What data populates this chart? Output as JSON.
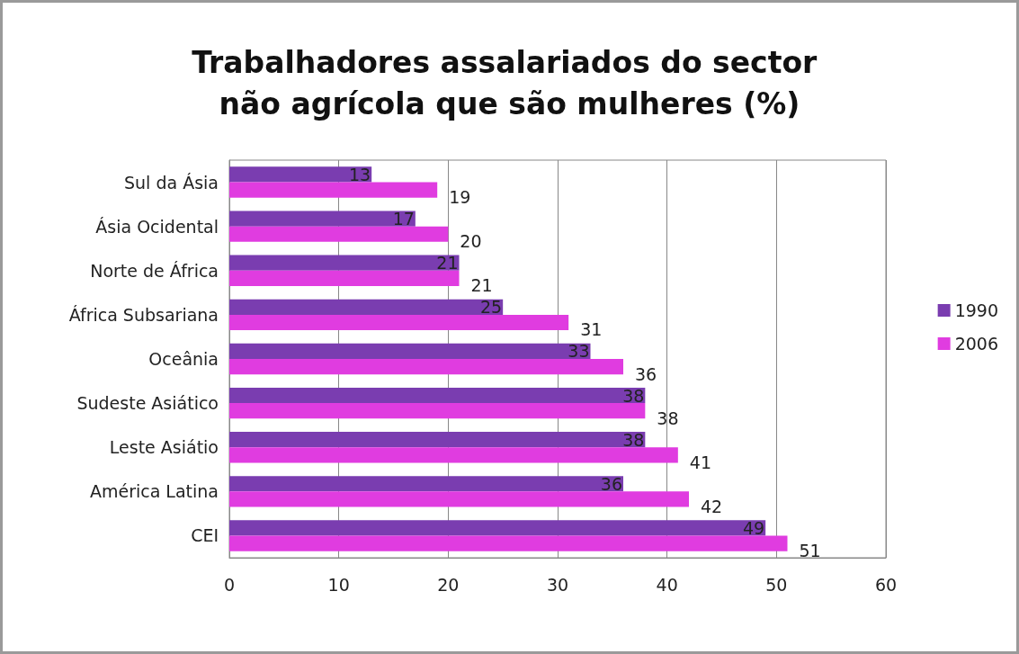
{
  "chart_data": {
    "type": "bar",
    "orientation": "horizontal",
    "title": "Trabalhadores assalariados do sector não agrícola que são mulheres (%)",
    "categories": [
      "Sul da Ásia",
      "Ásia Ocidental",
      "Norte de África",
      "África Subsariana",
      "Oceânia",
      "Sudeste Asiático",
      "Leste Asiátio",
      "América Latina",
      "CEI"
    ],
    "series": [
      {
        "name": "1990",
        "color": "#7a3db0",
        "values": [
          13,
          17,
          21,
          25,
          33,
          38,
          38,
          36,
          49
        ]
      },
      {
        "name": "2006",
        "color": "#e03ce0",
        "values": [
          19,
          20,
          21,
          31,
          36,
          38,
          41,
          42,
          51
        ]
      }
    ],
    "xlim": [
      0,
      60
    ],
    "xticks": [
      0,
      10,
      20,
      30,
      40,
      50,
      60
    ],
    "grid": "x",
    "legend": "right",
    "data_labels": true
  }
}
